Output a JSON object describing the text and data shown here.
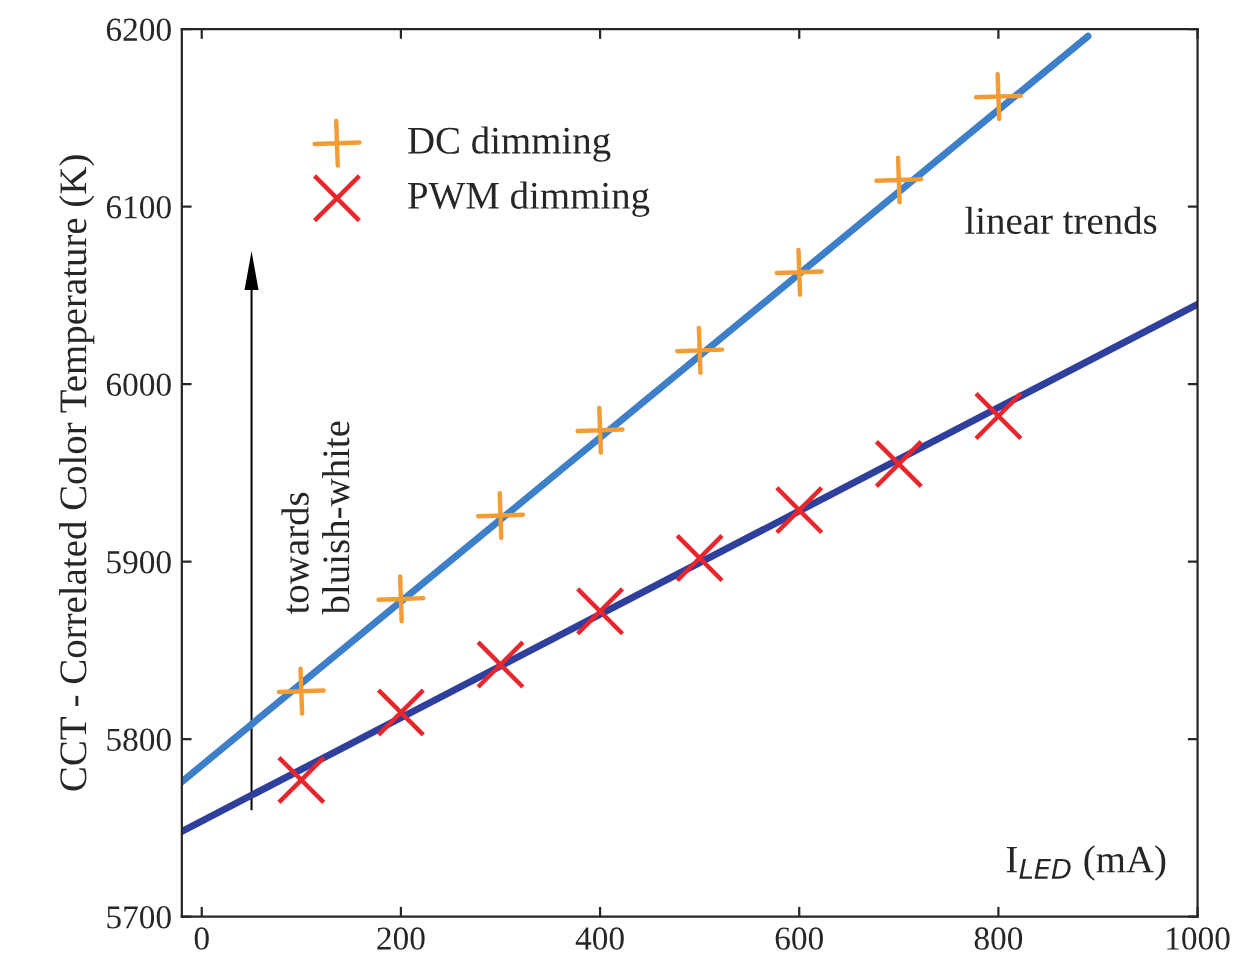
{
  "chart_data": {
    "type": "scatter",
    "ylabel": "CCT - Correlated Color Temperature (K)",
    "xlabel": "I$_{LED}$ (mA)",
    "series": [
      {
        "name": "DC dimming",
        "marker": "cross",
        "color": "#f39c34",
        "x": [
          100,
          200,
          300,
          400,
          500,
          600,
          700,
          800
        ],
        "values": [
          5827,
          5879,
          5926,
          5974,
          6019,
          6063,
          6115,
          6162
        ]
      },
      {
        "name": "PWM dimming",
        "marker": "cross",
        "color": "#e8262b",
        "x": [
          100,
          200,
          300,
          400,
          500,
          600,
          700,
          800
        ],
        "values": [
          5777,
          5815,
          5842,
          5872,
          5902,
          5929,
          5955,
          5982
        ]
      },
      {
        "type": "line",
        "color": "#3d7fc8",
        "x": [
          -20,
          890
        ],
        "values": [
          5776,
          6196
        ]
      },
      {
        "type": "line",
        "color": "#2e3f9e",
        "x": [
          -20,
          1000
        ],
        "values": [
          5748,
          6045
        ]
      }
    ],
    "xlim": [
      -20,
      1000
    ],
    "xticks": [
      0,
      200,
      400,
      600,
      800,
      1000
    ],
    "ylim": [
      5700,
      6200
    ],
    "yticks": [
      5700,
      5800,
      5900,
      6000,
      6100,
      6200
    ],
    "legend": "top left",
    "grid": false,
    "annotations": [
      "towards\nbluish-white",
      "linear trends"
    ]
  }
}
